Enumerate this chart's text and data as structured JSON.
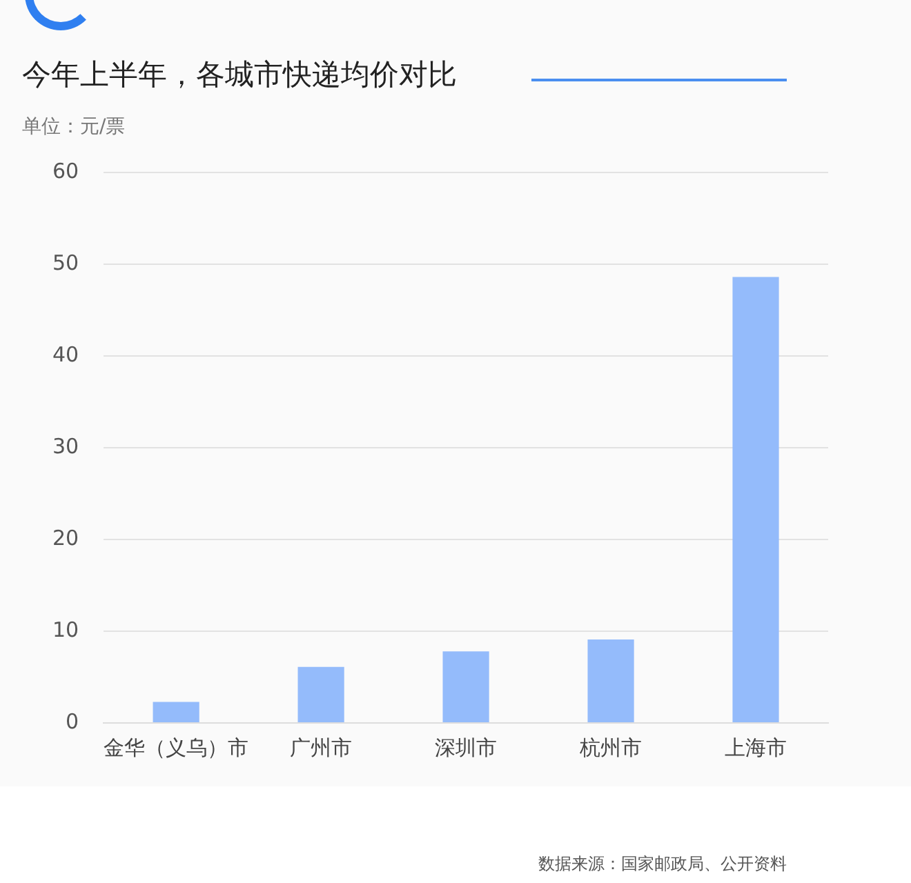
{
  "chart_data": {
    "type": "bar",
    "title": "今年上半年，各城市快递均价对比",
    "ylabel": "单位：元/票",
    "categories": [
      "金华（义乌）市",
      "广州市",
      "深圳市",
      "杭州市",
      "上海市"
    ],
    "values": [
      2.3,
      6.1,
      7.8,
      9.1,
      48.6
    ],
    "color": "#94bbfb",
    "ylim": [
      0,
      60
    ],
    "yticks": [
      0,
      10,
      20,
      30,
      40,
      50,
      60
    ],
    "grid": "y",
    "annotations": [
      "数据来源：国家邮政局、公开资料"
    ]
  }
}
